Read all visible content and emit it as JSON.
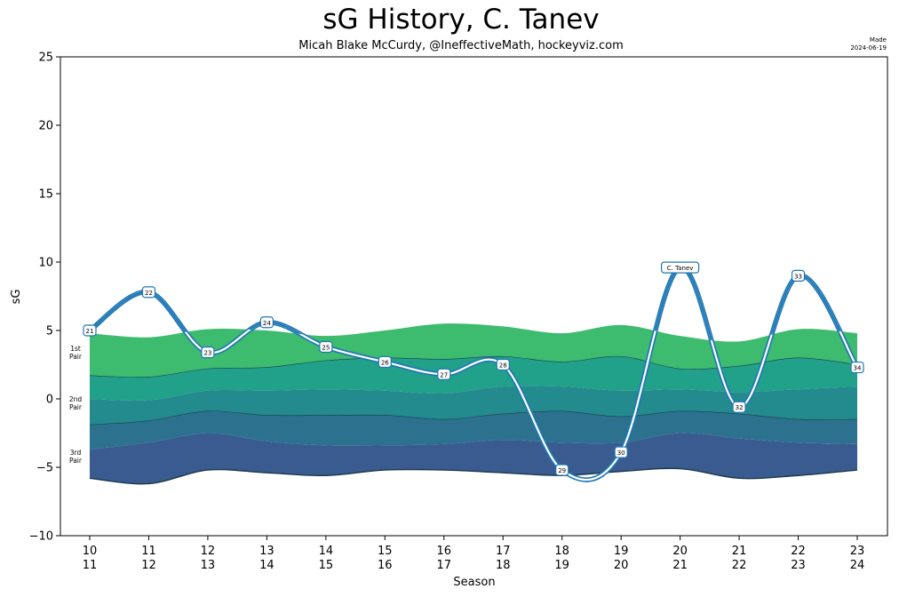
{
  "header": {
    "title": "sG History, C. Tanev",
    "subtitle": "Micah Blake McCurdy, @IneffectiveMath, hockeyviz.com",
    "made_label": "Made",
    "made_date": "2024-06-19"
  },
  "chart_data": {
    "type": "line",
    "title": "sG History, C. Tanev",
    "xlabel": "Season",
    "ylabel": "sG",
    "ylim": [
      -10,
      25
    ],
    "yticks": [
      -10,
      -5,
      0,
      5,
      10,
      15,
      20,
      25
    ],
    "categories": [
      {
        "top": "10",
        "bottom": "11"
      },
      {
        "top": "11",
        "bottom": "12"
      },
      {
        "top": "12",
        "bottom": "13"
      },
      {
        "top": "13",
        "bottom": "14"
      },
      {
        "top": "14",
        "bottom": "15"
      },
      {
        "top": "15",
        "bottom": "16"
      },
      {
        "top": "16",
        "bottom": "17"
      },
      {
        "top": "17",
        "bottom": "18"
      },
      {
        "top": "18",
        "bottom": "19"
      },
      {
        "top": "19",
        "bottom": "20"
      },
      {
        "top": "20",
        "bottom": "21"
      },
      {
        "top": "21",
        "bottom": "22"
      },
      {
        "top": "22",
        "bottom": "23"
      },
      {
        "top": "23",
        "bottom": "24"
      }
    ],
    "series": [
      {
        "name": "C. Tanev",
        "color": "#1f77b4",
        "values": [
          5.0,
          7.8,
          3.4,
          5.6,
          3.8,
          2.7,
          1.8,
          2.5,
          -5.2,
          -3.9,
          9.6,
          -0.6,
          9.0,
          2.3
        ],
        "point_labels": [
          "21",
          "22",
          "23",
          "24",
          "25",
          "26",
          "27",
          "28",
          "29",
          "30",
          "C. Tanev",
          "32",
          "33",
          "34"
        ]
      }
    ],
    "bands": {
      "top_1st": [
        4.8,
        4.5,
        5.1,
        5.0,
        4.6,
        5.0,
        5.5,
        5.3,
        4.8,
        5.4,
        4.6,
        4.2,
        5.1,
        4.8
      ],
      "mid_1st": [
        1.7,
        1.6,
        2.2,
        2.3,
        2.8,
        3.0,
        2.9,
        3.1,
        2.7,
        3.1,
        2.2,
        2.4,
        3.0,
        2.5
      ],
      "top_2nd": [
        0.0,
        -0.1,
        0.6,
        0.6,
        0.7,
        0.6,
        0.4,
        0.9,
        0.9,
        0.6,
        0.7,
        0.5,
        0.7,
        0.9
      ],
      "mid_2nd": [
        -1.9,
        -1.6,
        -0.9,
        -1.2,
        -1.2,
        -1.2,
        -1.5,
        -1.1,
        -0.9,
        -1.3,
        -0.9,
        -1.1,
        -1.5,
        -1.5
      ],
      "top_3rd": [
        -3.7,
        -3.2,
        -2.5,
        -3.1,
        -3.4,
        -3.4,
        -3.3,
        -3.0,
        -3.2,
        -3.2,
        -2.5,
        -2.9,
        -3.2,
        -3.3
      ],
      "bottom_3rd": [
        -5.8,
        -6.2,
        -5.2,
        -5.4,
        -5.6,
        -5.2,
        -5.2,
        -5.4,
        -5.6,
        -5.3,
        -5.1,
        -5.8,
        -5.6,
        -5.2
      ]
    },
    "band_labels": [
      {
        "line1": "1st",
        "line2": "Pair",
        "y": 3.3
      },
      {
        "line1": "2nd",
        "line2": "Pair",
        "y": -0.4
      },
      {
        "line1": "3rd",
        "line2": "Pair",
        "y": -4.3
      }
    ],
    "band_colors": {
      "first_upper": "#3dbb6f",
      "first_lower": "#21a08a",
      "second_upper": "#238a8d",
      "second_lower": "#2c728e",
      "third": "#3a5b8f",
      "edge": "#1b3a4b"
    },
    "grid": false
  }
}
